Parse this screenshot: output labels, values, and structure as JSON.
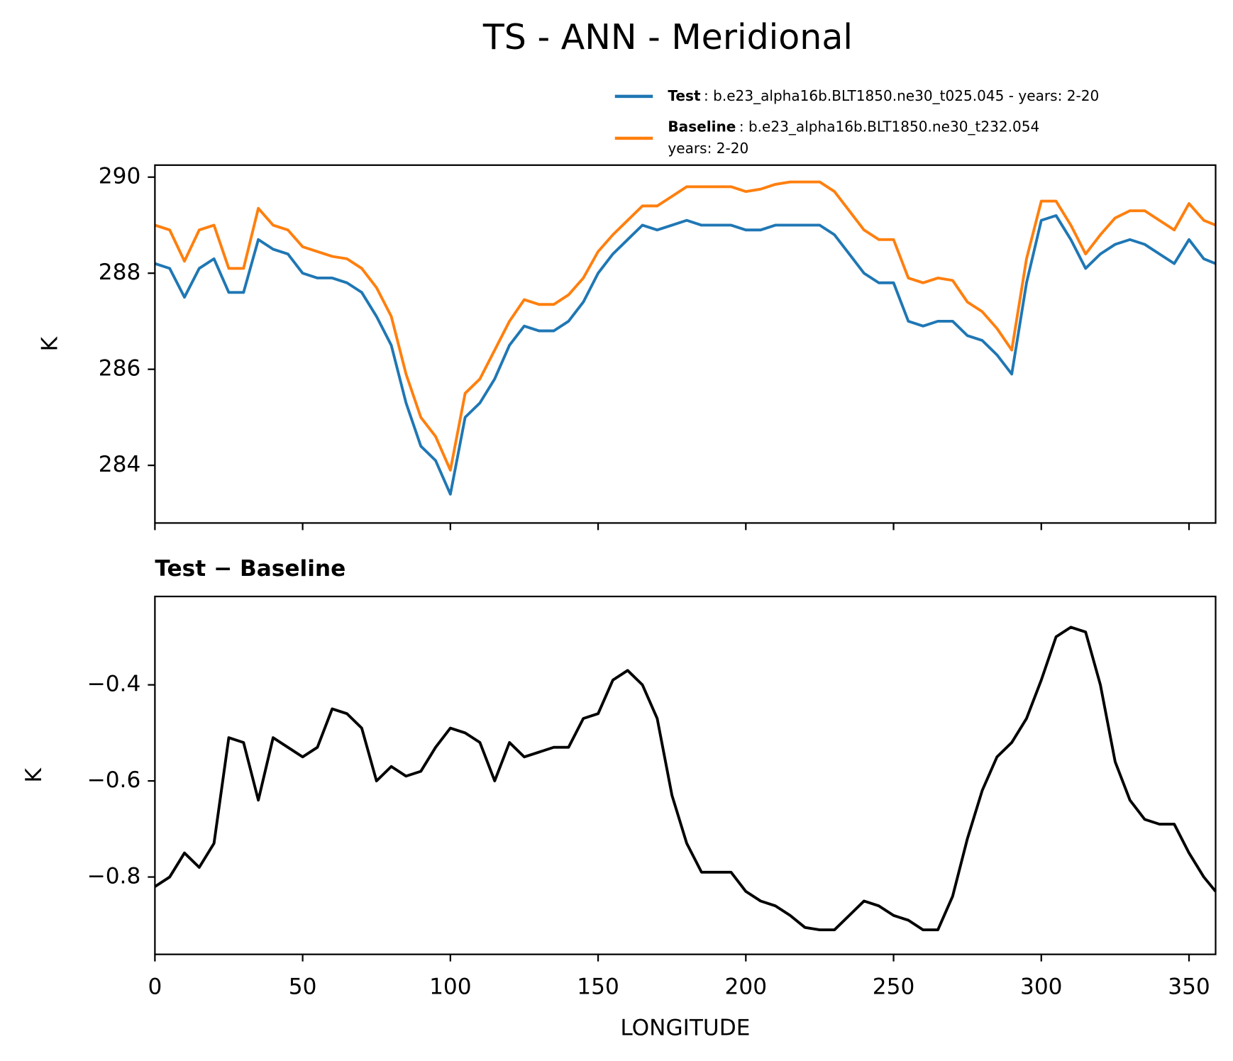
{
  "chart_data": [
    {
      "type": "line",
      "title": "TS - ANN - Meridional",
      "ylabel": "K",
      "x": [
        0,
        5,
        10,
        15,
        20,
        25,
        30,
        35,
        40,
        45,
        50,
        55,
        60,
        65,
        70,
        75,
        80,
        85,
        90,
        95,
        100,
        105,
        110,
        115,
        120,
        125,
        130,
        135,
        140,
        145,
        150,
        155,
        160,
        165,
        170,
        175,
        180,
        185,
        190,
        195,
        200,
        205,
        210,
        215,
        220,
        225,
        230,
        235,
        240,
        245,
        250,
        255,
        260,
        265,
        270,
        275,
        280,
        285,
        290,
        295,
        300,
        305,
        310,
        315,
        320,
        325,
        330,
        335,
        340,
        345,
        350,
        355,
        359
      ],
      "series": [
        {
          "name": "Test",
          "description": [
            ": b.e23_alpha16b.BLT1850.ne30_t025.045 - years: 2-20"
          ],
          "color": "#1f77b4",
          "values": [
            288.2,
            288.1,
            287.5,
            288.1,
            288.3,
            287.6,
            287.6,
            288.7,
            288.5,
            288.4,
            288.0,
            287.9,
            287.9,
            287.8,
            287.6,
            287.1,
            286.5,
            285.3,
            284.4,
            284.1,
            283.4,
            285.0,
            285.3,
            285.8,
            286.5,
            286.9,
            286.8,
            286.8,
            287.0,
            287.4,
            288.0,
            288.4,
            288.7,
            289.0,
            288.9,
            289.0,
            289.1,
            289.0,
            289.0,
            289.0,
            288.9,
            288.9,
            289.0,
            289.0,
            289.0,
            289.0,
            288.8,
            288.4,
            288.0,
            287.8,
            287.8,
            287.0,
            286.9,
            287.0,
            287.0,
            286.7,
            286.6,
            286.3,
            285.9,
            287.8,
            289.1,
            289.2,
            288.7,
            288.1,
            288.4,
            288.6,
            288.7,
            288.6,
            288.4,
            288.2,
            288.7,
            288.3,
            288.2
          ]
        },
        {
          "name": "Baseline",
          "description": [
            ": b.e23_alpha16b.BLT1850.ne30_t232.054",
            "years: 2-20"
          ],
          "color": "#ff7f0e",
          "values": [
            289.0,
            288.9,
            288.25,
            288.9,
            289.0,
            288.1,
            288.1,
            289.35,
            289.0,
            288.9,
            288.55,
            288.45,
            288.35,
            288.3,
            288.1,
            287.7,
            287.1,
            285.9,
            285.0,
            284.6,
            283.9,
            285.5,
            285.8,
            286.4,
            287.0,
            287.45,
            287.35,
            287.35,
            287.55,
            287.9,
            288.45,
            288.8,
            289.1,
            289.4,
            289.4,
            289.6,
            289.8,
            289.8,
            289.8,
            289.8,
            289.7,
            289.75,
            289.85,
            289.9,
            289.9,
            289.9,
            289.7,
            289.3,
            288.9,
            288.7,
            288.7,
            287.9,
            287.8,
            287.9,
            287.85,
            287.4,
            287.2,
            286.85,
            286.4,
            288.3,
            289.5,
            289.5,
            289.0,
            288.4,
            288.8,
            289.15,
            289.3,
            289.3,
            289.1,
            288.9,
            289.45,
            289.1,
            289.0
          ]
        }
      ],
      "xlim": [
        0,
        359
      ],
      "xticks": [
        0,
        50,
        100,
        150,
        200,
        250,
        300,
        350
      ],
      "xtick_labels": false,
      "ylim": [
        282.8,
        290.25
      ],
      "yticks": [
        284,
        286,
        288,
        290
      ]
    },
    {
      "type": "line",
      "title": "Test − Baseline",
      "xlabel": "LONGITUDE",
      "ylabel": "K",
      "x": [
        0,
        5,
        10,
        15,
        20,
        25,
        30,
        35,
        40,
        45,
        50,
        55,
        60,
        65,
        70,
        75,
        80,
        85,
        90,
        95,
        100,
        105,
        110,
        115,
        120,
        125,
        130,
        135,
        140,
        145,
        150,
        155,
        160,
        165,
        170,
        175,
        180,
        185,
        190,
        195,
        200,
        205,
        210,
        215,
        220,
        225,
        230,
        235,
        240,
        245,
        250,
        255,
        260,
        265,
        270,
        275,
        280,
        285,
        290,
        295,
        300,
        305,
        310,
        315,
        320,
        325,
        330,
        335,
        340,
        345,
        350,
        355,
        359
      ],
      "series": [
        {
          "color": "#000000",
          "values": [
            -0.82,
            -0.8,
            -0.75,
            -0.78,
            -0.73,
            -0.51,
            -0.52,
            -0.64,
            -0.51,
            -0.53,
            -0.55,
            -0.53,
            -0.45,
            -0.46,
            -0.49,
            -0.6,
            -0.57,
            -0.59,
            -0.58,
            -0.53,
            -0.49,
            -0.5,
            -0.52,
            -0.6,
            -0.52,
            -0.55,
            -0.54,
            -0.53,
            -0.53,
            -0.47,
            -0.46,
            -0.39,
            -0.37,
            -0.4,
            -0.47,
            -0.63,
            -0.73,
            -0.79,
            -0.79,
            -0.79,
            -0.83,
            -0.85,
            -0.86,
            -0.88,
            -0.905,
            -0.91,
            -0.91,
            -0.88,
            -0.85,
            -0.86,
            -0.88,
            -0.89,
            -0.91,
            -0.91,
            -0.84,
            -0.72,
            -0.62,
            -0.55,
            -0.52,
            -0.47,
            -0.39,
            -0.3,
            -0.28,
            -0.29,
            -0.4,
            -0.56,
            -0.64,
            -0.68,
            -0.69,
            -0.69,
            -0.75,
            -0.8,
            -0.83
          ]
        }
      ],
      "xlim": [
        0,
        359
      ],
      "xticks": [
        0,
        50,
        100,
        150,
        200,
        250,
        300,
        350
      ],
      "xtick_labels": true,
      "ylim": [
        -0.961,
        -0.216
      ],
      "yticks": [
        {
          "value": -0.8,
          "label": "−0.8"
        },
        {
          "value": -0.6,
          "label": "−0.6"
        },
        {
          "value": -0.4,
          "label": "−0.4"
        }
      ]
    }
  ]
}
